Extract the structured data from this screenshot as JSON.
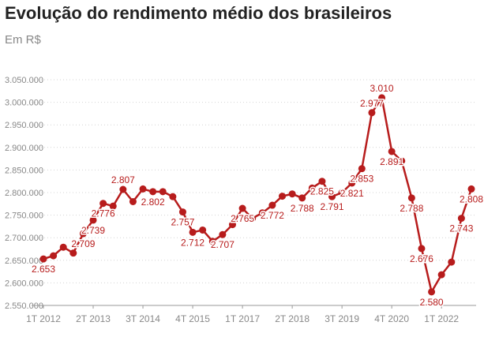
{
  "header": {
    "title": "Evolução do rendimento médio dos brasileiros",
    "subtitle": "Em R$"
  },
  "colors": {
    "series": "#b71c1c",
    "text": "#222222",
    "muted": "#888888"
  },
  "chart_data": {
    "type": "line",
    "title": "Evolução do rendimento médio dos brasileiros",
    "subtitle": "Em R$",
    "xlabel": "",
    "ylabel": "",
    "ylim": [
      2550,
      3050
    ],
    "yticks": [
      2550,
      2600,
      2650,
      2700,
      2750,
      2800,
      2850,
      2900,
      2950,
      3000,
      3050
    ],
    "grid": true,
    "legend": "none",
    "x": [
      "1T 2012",
      "2T 2012",
      "3T 2012",
      "4T 2012",
      "1T 2013",
      "2T 2013",
      "3T 2013",
      "4T 2013",
      "1T 2014",
      "2T 2014",
      "3T 2014",
      "4T 2014",
      "1T 2015",
      "2T 2015",
      "3T 2015",
      "4T 2015",
      "1T 2016",
      "2T 2016",
      "3T 2016",
      "4T 2016",
      "1T 2017",
      "2T 2017",
      "3T 2017",
      "4T 2017",
      "1T 2018",
      "2T 2018",
      "3T 2018",
      "4T 2018",
      "1T 2019",
      "2T 2019",
      "3T 2019",
      "4T 2019",
      "1T 2020",
      "2T 2020",
      "3T 2020",
      "4T 2020",
      "1T 2021",
      "2T 2021",
      "3T 2021",
      "4T 2021",
      "1T 2022",
      "2T 2022",
      "3T 2022",
      "4T 2022"
    ],
    "xtick_labels": [
      "1T 2012",
      "2T 2013",
      "3T 2014",
      "4T 2015",
      "1T 2017",
      "2T 2018",
      "3T 2019",
      "4T 2020",
      "1T 2022"
    ],
    "series": [
      {
        "values": [
          2653,
          2660,
          2679,
          2666,
          2709,
          2739,
          2776,
          2770,
          2807,
          2780,
          2808,
          2802,
          2802,
          2791,
          2757,
          2712,
          2717,
          2692,
          2707,
          2729,
          2765,
          2743,
          2755,
          2772,
          2792,
          2797,
          2788,
          2810,
          2825,
          2791,
          2800,
          2821,
          2853,
          2977,
          3010,
          2891,
          2870,
          2788,
          2676,
          2580,
          2618,
          2646,
          2743,
          2808
        ],
        "labeled_indices": [
          0,
          4,
          5,
          6,
          8,
          11,
          14,
          15,
          18,
          20,
          23,
          26,
          28,
          29,
          31,
          32,
          33,
          34,
          35,
          37,
          38,
          39,
          42,
          43
        ]
      }
    ]
  }
}
